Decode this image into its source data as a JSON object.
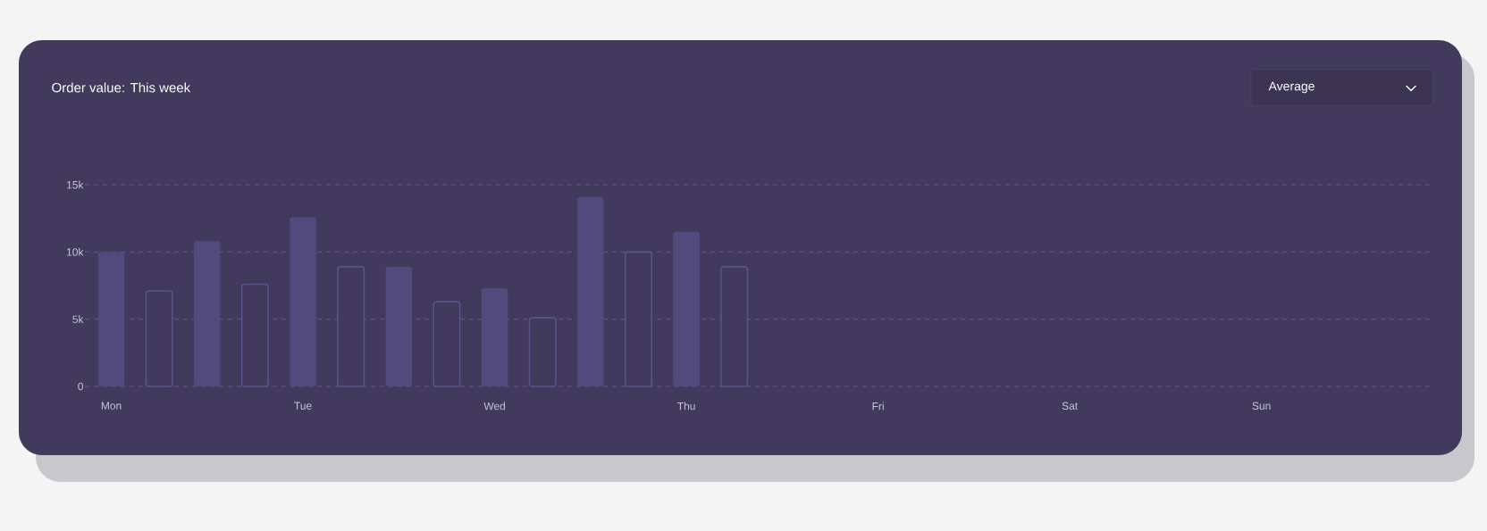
{
  "chart_data": {
    "type": "bar",
    "title": "Order value: This week",
    "annotations": [
      "Average"
    ],
    "categories": [
      "Mon",
      null,
      null,
      null,
      "Tue",
      null,
      null,
      null,
      "Wed",
      null,
      null,
      null,
      "Thu",
      null,
      null,
      null,
      "Fri",
      null,
      null,
      null,
      "Sat",
      null,
      null,
      null,
      "Sun",
      null,
      null,
      null
    ],
    "series": [
      {
        "color": "#524a7c",
        "values": [
          10000,
          null,
          10800,
          null,
          12600,
          null,
          8900,
          null,
          7300,
          null,
          14100,
          null,
          11500,
          null,
          null,
          null,
          null,
          null,
          null,
          null,
          null,
          null,
          null,
          null,
          null,
          null,
          null,
          null
        ]
      },
      {
        "color": "#5b5387",
        "values": [
          null,
          7100,
          null,
          7600,
          null,
          8900,
          null,
          6300,
          null,
          5100,
          null,
          10000,
          null,
          8900,
          null,
          null,
          null,
          null,
          null,
          null,
          null,
          null,
          null,
          null,
          null,
          null,
          null,
          null
        ]
      }
    ],
    "ylim": [
      0,
      15000
    ],
    "yticks": [
      {
        "value": 0,
        "label": "0"
      },
      {
        "value": 5000,
        "label": "5k"
      },
      {
        "value": 10000,
        "label": "10k"
      },
      {
        "value": 15000,
        "label": "15k"
      }
    ],
    "grid": "y"
  }
}
